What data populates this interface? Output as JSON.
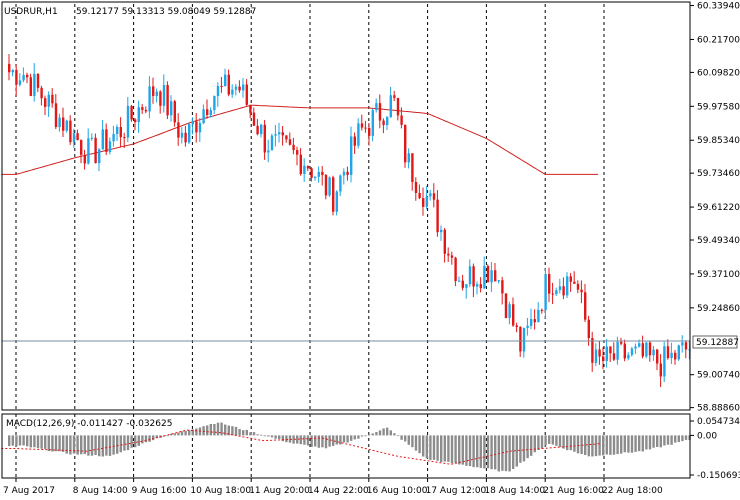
{
  "header": {
    "symbol": "USDRUR,H1",
    "ohlc": "59.12177 59.13313 59.08049 59.12887"
  },
  "macd": {
    "label": "MACD(12,26,9) -0.011427 -0.032625",
    "scale_top": "0.054734",
    "scale_zero": "0.00",
    "scale_bottom": "-0.150693"
  },
  "current_price_label": "59.12887",
  "colors": {
    "bull": "#1fa5e8",
    "bear": "#e01818",
    "ma": "#d02020",
    "grid": "#000000",
    "price_line": "#7a8ea0",
    "hist": "#8c8c8c",
    "signal": "#e01818"
  },
  "chart_data": [
    {
      "type": "candlestick",
      "title": "USDRUR,H1",
      "xlabel": "",
      "ylabel": "",
      "ylim": [
        58.88,
        60.345
      ],
      "price_ticks": [
        "60.33940",
        "60.21700",
        "60.09820",
        "59.97580",
        "59.85340",
        "59.73460",
        "59.61220",
        "59.49340",
        "59.37100",
        "59.24860",
        "59.12887",
        "59.00740",
        "58.88860"
      ],
      "date_labels": [
        "7 Aug 2017",
        "8 Aug 14:00",
        "9 Aug 16:00",
        "10 Aug 18:00",
        "11 Aug 20:00",
        "14 Aug 22:00",
        "16 Aug 10:00",
        "17 Aug 12:00",
        "18 Aug 14:00",
        "21 Aug 16:00",
        "22 Aug 18:00"
      ],
      "ma_points": [
        [
          0,
          59.73
        ],
        [
          1,
          59.79
        ],
        [
          2,
          59.84
        ],
        [
          3,
          59.92
        ],
        [
          4,
          59.98
        ],
        [
          5,
          59.97
        ],
        [
          6,
          59.97
        ],
        [
          7,
          59.95
        ],
        [
          8,
          59.86
        ],
        [
          9,
          59.73
        ]
      ],
      "current_price": 59.12887
    },
    {
      "type": "bar",
      "title": "MACD(12,26,9) -0.011427 -0.032625",
      "ylim": [
        -0.150693,
        0.054734
      ],
      "hist_keypoints": [
        [
          0,
          -0.04
        ],
        [
          0.7,
          -0.07
        ],
        [
          1.3,
          -0.08
        ],
        [
          2.0,
          -0.01
        ],
        [
          2.6,
          0.03
        ],
        [
          2.9,
          0.05
        ],
        [
          3.3,
          0.02
        ],
        [
          4.0,
          -0.03
        ],
        [
          4.5,
          -0.05
        ],
        [
          5.0,
          -0.01
        ],
        [
          5.4,
          0.03
        ],
        [
          6.0,
          -0.09
        ],
        [
          7.2,
          -0.14
        ],
        [
          7.8,
          -0.03
        ],
        [
          8.4,
          -0.08
        ],
        [
          9.2,
          -0.06
        ],
        [
          10.0,
          -0.01
        ]
      ],
      "signal_keypoints": [
        [
          0,
          -0.05
        ],
        [
          1.2,
          -0.06
        ],
        [
          2.2,
          -0.02
        ],
        [
          2.9,
          0.02
        ],
        [
          3.5,
          0.01
        ],
        [
          4.2,
          -0.02
        ],
        [
          5.2,
          -0.01
        ],
        [
          6.5,
          -0.08
        ],
        [
          7.4,
          -0.11
        ],
        [
          8.4,
          -0.06
        ],
        [
          9.5,
          -0.04
        ],
        [
          10.0,
          -0.03
        ]
      ]
    }
  ]
}
